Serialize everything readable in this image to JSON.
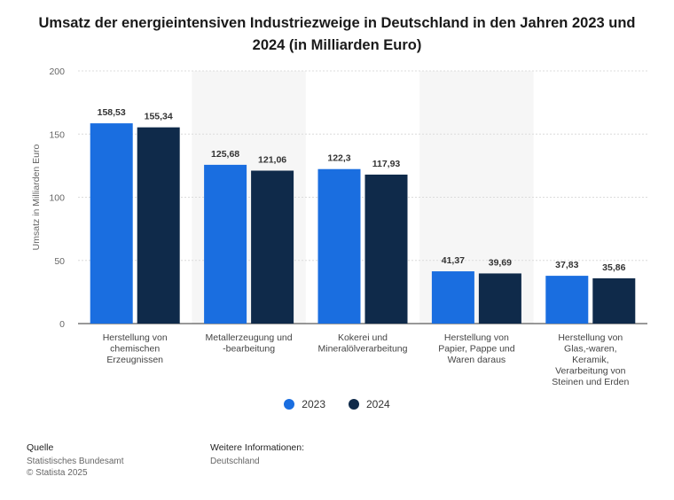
{
  "chart_data": {
    "type": "bar",
    "title": "Umsatz der energieintensiven Industriezweige in Deutschland in den Jahren 2023 und 2024 (in Milliarden Euro)",
    "ylabel": "Umsatz in Milliarden Euro",
    "xlabel": "",
    "ylim": [
      0,
      200
    ],
    "yticks": [
      "0",
      "50",
      "100",
      "150",
      "200"
    ],
    "categories": [
      [
        "Herstellung von",
        "chemischen",
        "Erzeugnissen"
      ],
      [
        "Metallerzeugung und",
        "-bearbeitung"
      ],
      [
        "Kokerei und",
        "Mineralölverarbeitung"
      ],
      [
        "Herstellung von",
        "Papier, Pappe und",
        "Waren daraus"
      ],
      [
        "Herstellung von",
        "Glas,-waren,",
        "Keramik,",
        "Verarbeitung von",
        "Steinen und Erden"
      ]
    ],
    "series": [
      {
        "name": "2023",
        "color": "#1a6ee0",
        "values": [
          158.53,
          125.68,
          122.3,
          41.37,
          37.83
        ],
        "labels": [
          "158,53",
          "125,68",
          "122,3",
          "41,37",
          "37,83"
        ]
      },
      {
        "name": "2024",
        "color": "#0f2a4a",
        "values": [
          155.34,
          121.06,
          117.93,
          39.69,
          35.86
        ],
        "labels": [
          "155,34",
          "121,06",
          "117,93",
          "39,69",
          "35,86"
        ]
      }
    ],
    "grid": true,
    "legend_position": "bottom"
  },
  "footer": {
    "source_heading": "Quelle",
    "source_lines": [
      "Statistisches Bundesamt",
      "© Statista 2025"
    ],
    "info_heading": "Weitere Informationen:",
    "info_lines": [
      "Deutschland"
    ]
  }
}
